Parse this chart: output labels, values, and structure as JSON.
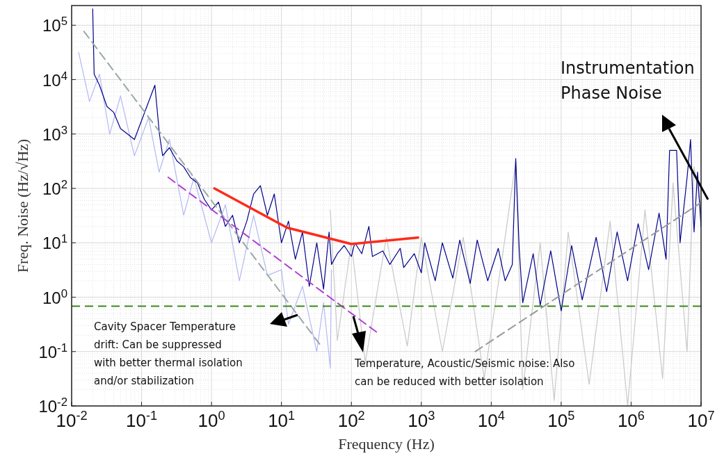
{
  "chart_data": {
    "type": "line",
    "xlabel": "Frequency (Hz)",
    "ylabel": "Freq. Noise (Hz/√Hz)",
    "log": "xy",
    "grid": true,
    "xlim": [
      0.01,
      10000000
    ],
    "ylim": [
      0.01,
      230000
    ],
    "xticks": [
      {
        "value": 0.01,
        "label": "10$^{-2}$"
      },
      {
        "value": 0.1,
        "label": "10$^{-1}$"
      },
      {
        "value": 1,
        "label": "10$^{0}$"
      },
      {
        "value": 10,
        "label": "10$^{1}$"
      },
      {
        "value": 100,
        "label": "10$^{2}$"
      },
      {
        "value": 1000,
        "label": "10$^{3}$"
      },
      {
        "value": 10000,
        "label": "10$^{4}$"
      },
      {
        "value": 100000,
        "label": "10$^{5}$"
      },
      {
        "value": 1000000,
        "label": "10$^{6}$"
      },
      {
        "value": 10000000,
        "label": "10$^{7}$"
      }
    ],
    "yticks": [
      {
        "value": 0.01,
        "label": "10$^{-2}$"
      },
      {
        "value": 0.1,
        "label": "10$^{-1}$"
      },
      {
        "value": 1,
        "label": "10$^{0}$"
      },
      {
        "value": 10,
        "label": "10$^{1}$"
      },
      {
        "value": 100,
        "label": "10$^{2}$"
      },
      {
        "value": 1000,
        "label": "10$^{3}$"
      },
      {
        "value": 10000,
        "label": "10$^{4}$"
      },
      {
        "value": 100000,
        "label": "10$^{5}$"
      }
    ],
    "series": [
      {
        "color": "#c8c8c8",
        "x": [
          50,
          63,
          100,
          158,
          316,
          631,
          1000,
          2000,
          3980,
          7940,
          15800,
          22400,
          28200,
          50100,
          79400,
          126000,
          251000,
          501000,
          891000,
          1580000,
          2820000,
          3980000,
          6310000,
          7940000,
          10000000
        ],
        "values": [
          40,
          0.16,
          10,
          0.063,
          12.6,
          0.126,
          12.6,
          0.1,
          12.6,
          0.032,
          12.6,
          316,
          0.02,
          10,
          0.0126,
          15.8,
          0.025,
          25,
          0.01,
          40,
          0.032,
          126,
          0.1,
          251,
          40
        ]
      },
      {
        "color": "#b4b8f2",
        "x": [
          0.0126,
          0.018,
          0.025,
          0.035,
          0.05,
          0.079,
          0.126,
          0.178,
          0.25,
          0.4,
          0.56,
          1,
          1.58,
          2.5,
          4,
          6.3,
          10,
          12.6,
          20,
          32,
          40,
          50,
          52
        ],
        "values": [
          31600,
          3980,
          12600,
          1000,
          5010,
          398,
          2000,
          200,
          794,
          32,
          158,
          10,
          50,
          2,
          32,
          2.5,
          3.2,
          0.32,
          1.58,
          0.1,
          0.79,
          0.05,
          3.2
        ]
      },
      {
        "color": "#00008b",
        "x": [
          0.02,
          0.021,
          0.025,
          0.032,
          0.04,
          0.05,
          0.063,
          0.079,
          0.155,
          0.18,
          0.2,
          0.25,
          0.32,
          0.4,
          0.5,
          0.63,
          0.79,
          1,
          1.26,
          1.58,
          2,
          2.5,
          3.2,
          4,
          5,
          6.3,
          7.9,
          10,
          12.6,
          15.8,
          20,
          25,
          32,
          40,
          48,
          52,
          63,
          79,
          100,
          112,
          141,
          178,
          200,
          282,
          355,
          500,
          560,
          794,
          1000,
          1120,
          1580,
          2000,
          2820,
          3550,
          5000,
          6300,
          8900,
          12600,
          15800,
          20000,
          22400,
          25100,
          28200,
          39800,
          50100,
          70800,
          100000,
          141000,
          200000,
          316000,
          447000,
          631000,
          891000,
          1260000,
          1780000,
          2510000,
          3160000,
          3550000,
          4470000,
          5010000,
          6310000,
          7080000,
          7940000,
          8910000,
          10000000
        ],
        "values": [
          200000,
          12600,
          7900,
          3200,
          2500,
          1260,
          1000,
          790,
          7900,
          1000,
          400,
          560,
          320,
          250,
          158,
          126,
          63,
          40,
          56,
          20,
          32,
          10,
          25,
          79,
          112,
          32,
          79,
          10,
          25,
          5,
          15.8,
          1.58,
          10,
          1.41,
          15.8,
          4,
          6.3,
          8.9,
          5.6,
          10,
          6.3,
          20,
          5.6,
          7.1,
          4,
          7.9,
          3.5,
          6.3,
          2.8,
          10,
          2,
          10,
          2.24,
          11.2,
          1.78,
          11.2,
          2,
          7.9,
          2,
          4,
          355,
          7.9,
          0.79,
          6.3,
          0.71,
          7.1,
          0.56,
          8.9,
          0.89,
          12.6,
          1.26,
          15.8,
          2,
          22.4,
          3.2,
          35,
          5,
          500,
          500,
          10,
          158,
          790,
          15.8,
          200,
          20
        ]
      },
      {
        "color": "#9aa8a8",
        "line_style": "dashed",
        "x": [
          0.015,
          38
        ],
        "values": [
          77000,
          0.12
        ]
      },
      {
        "color": "#b040d0",
        "line_style": "dashed",
        "x": [
          0.24,
          250
        ],
        "values": [
          160,
          0.21
        ]
      },
      {
        "color": "#999999",
        "line_style": "dashed",
        "x": [
          5900,
          10000000
        ],
        "values": [
          0.1,
          55
        ]
      },
      {
        "color": "#ff2a1a",
        "x": [
          1.1,
          12,
          100,
          900
        ],
        "values": [
          100,
          19,
          9.5,
          12.5
        ]
      }
    ],
    "ref_lines": [
      {
        "axis": "y",
        "value": 0.68,
        "color": "#3a8a1a",
        "line_style": "dashed"
      }
    ],
    "annotations": [
      "Instrumentation\nPhase Noise",
      "Cavity Spacer Temperature\ndrift: Can be suppressed\nwith better thermal isolation\nand/or stabilization",
      "Temperature, Acoustic/Seismic noise: Also\ncan be reduced with better isolation"
    ]
  }
}
